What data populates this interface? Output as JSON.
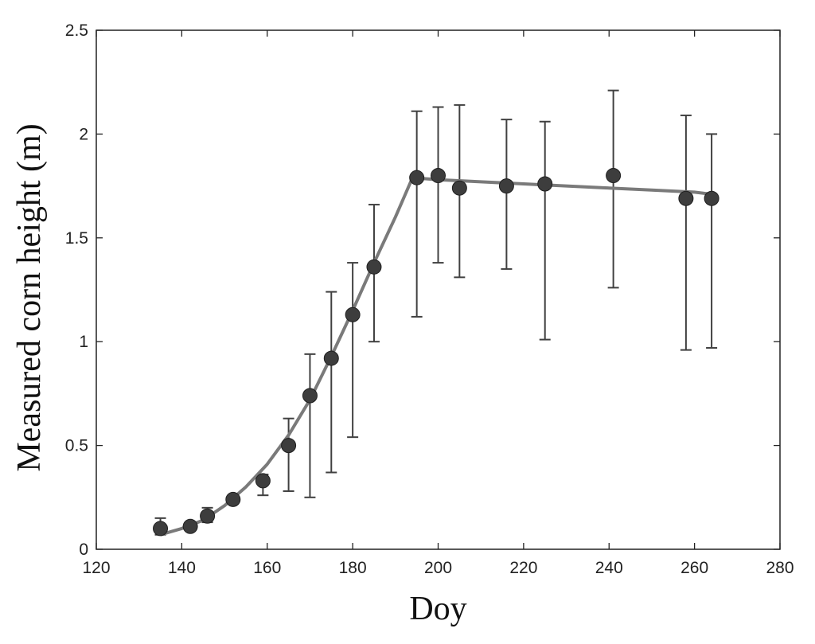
{
  "chart_data": {
    "type": "scatter",
    "title": "",
    "xlabel": "Doy",
    "ylabel": "Measured corn height (m)",
    "xlim": [
      120,
      280
    ],
    "ylim": [
      0,
      2.5
    ],
    "xticks": [
      120,
      140,
      160,
      180,
      200,
      220,
      240,
      260,
      280
    ],
    "yticks": [
      0,
      0.5,
      1,
      1.5,
      2,
      2.5
    ],
    "xtick_labels": [
      "120",
      "140",
      "160",
      "180",
      "200",
      "220",
      "240",
      "260",
      "280"
    ],
    "ytick_labels": [
      "0",
      "0.5",
      "1",
      "1.5",
      "2",
      "2.5"
    ],
    "grid": false,
    "legend": "none",
    "series": [
      {
        "kind": "points_with_error_bars",
        "x": [
          135,
          142,
          146,
          152,
          159,
          165,
          170,
          175,
          180,
          185,
          195,
          200,
          205,
          216,
          225,
          241,
          258,
          264
        ],
        "y": [
          0.1,
          0.11,
          0.16,
          0.24,
          0.33,
          0.5,
          0.74,
          0.92,
          1.13,
          1.36,
          1.79,
          1.8,
          1.74,
          1.75,
          1.76,
          1.8,
          1.69,
          1.69
        ],
        "y_low": [
          0.07,
          0.09,
          0.13,
          0.22,
          0.26,
          0.28,
          0.25,
          0.37,
          0.54,
          1.0,
          1.12,
          1.38,
          1.31,
          1.35,
          1.01,
          1.26,
          0.96,
          0.97
        ],
        "y_high": [
          0.15,
          0.13,
          0.2,
          0.26,
          0.36,
          0.63,
          0.94,
          1.24,
          1.38,
          1.66,
          2.11,
          2.13,
          2.14,
          2.07,
          2.06,
          2.21,
          2.09,
          2.0
        ]
      },
      {
        "kind": "fitted_line",
        "x": [
          135,
          140,
          145,
          150,
          155,
          160,
          165,
          170,
          175,
          180,
          185,
          190,
          194,
          200,
          210,
          220,
          230,
          240,
          250,
          260,
          264
        ],
        "y": [
          0.07,
          0.1,
          0.14,
          0.21,
          0.3,
          0.41,
          0.55,
          0.72,
          0.93,
          1.15,
          1.38,
          1.6,
          1.79,
          1.78,
          1.77,
          1.76,
          1.75,
          1.74,
          1.73,
          1.72,
          1.71
        ]
      }
    ],
    "colors": {
      "points": "#3d3d3d",
      "fit_line": "#7a7a7a",
      "error_bars": "#404040",
      "axes": "#222222"
    }
  }
}
